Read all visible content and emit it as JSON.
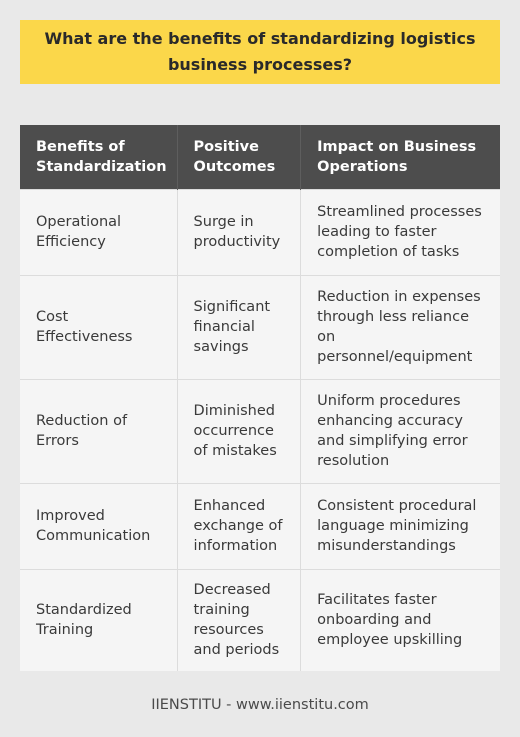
{
  "title": "What are the benefits of standardizing logistics business processes?",
  "table": {
    "headers": [
      "Benefits of Standardization",
      "Positive Outcomes",
      "Impact on Business Operations"
    ],
    "rows": [
      [
        "Operational Efficiency",
        "Surge in productivity",
        "Streamlined processes leading to faster completion of tasks"
      ],
      [
        "Cost Effectiveness",
        "Significant financial savings",
        "Reduction in expenses through less reliance on personnel/equipment"
      ],
      [
        "Reduction of Errors",
        "Diminished occurrence of mistakes",
        "Uniform procedures enhancing accuracy and simplifying error resolution"
      ],
      [
        "Improved Communication",
        "Enhanced exchange of information",
        "Consistent procedural language minimizing misunderstandings"
      ],
      [
        "Standardized Training",
        "Decreased training resources and periods",
        "Facilitates faster onboarding and employee upskilling"
      ]
    ]
  },
  "footer": "IIENSTITU - www.iienstitu.com",
  "colors": {
    "title_background": "#fbd74a",
    "header_background": "#4d4d4d",
    "cell_background": "#f5f5f5",
    "page_background": "#e9e9e9"
  }
}
